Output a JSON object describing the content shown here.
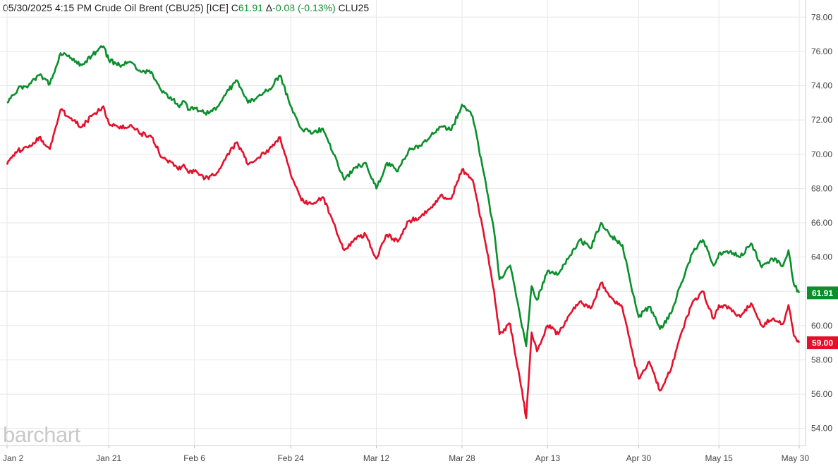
{
  "header": {
    "datetime": "05/30/2025 4:15 PM",
    "instrument": "Crude Oil Brent (CBU25) [ICE]",
    "close_label": "C",
    "close_value": "61.91",
    "change_label": "Δ",
    "change_value": "-0.08 (-0.13%)",
    "compare_symbol": "CLU25"
  },
  "watermark": "barchart",
  "colors": {
    "series_1": "#0a8f2c",
    "series_2": "#e4102b",
    "grid": "#e6e6e6",
    "axis_text": "#444444"
  },
  "chart_data": {
    "type": "line",
    "x_tick_labels": [
      "Jan 2",
      "Jan 21",
      "Feb 6",
      "Feb 24",
      "Mar 12",
      "Mar 28",
      "Apr 13",
      "Apr 30",
      "May 15",
      "May 30"
    ],
    "y_tick_labels": [
      "54.00",
      "56.00",
      "58.00",
      "60.00",
      "62.00",
      "64.00",
      "66.00",
      "68.00",
      "70.00",
      "72.00",
      "74.00",
      "76.00",
      "78.00"
    ],
    "ylim": [
      53,
      79
    ],
    "grid": true,
    "x_axis_position": "bottom",
    "y_axis_position": "right",
    "series": [
      {
        "name": "CBU25",
        "last_value": "61.91",
        "color": "#0a8f2c",
        "points": [
          [
            "Jan 2",
            73.0
          ],
          [
            "Jan 4",
            73.8
          ],
          [
            "Jan 6",
            74.0
          ],
          [
            "Jan 8",
            74.6
          ],
          [
            "Jan 10",
            74.1
          ],
          [
            "Jan 12",
            75.9
          ],
          [
            "Jan 14",
            75.6
          ],
          [
            "Jan 16",
            75.2
          ],
          [
            "Jan 18",
            75.8
          ],
          [
            "Jan 20",
            76.3
          ],
          [
            "Jan 21",
            75.5
          ],
          [
            "Jan 23",
            75.2
          ],
          [
            "Jan 25",
            75.4
          ],
          [
            "Jan 27",
            74.8
          ],
          [
            "Jan 29",
            74.8
          ],
          [
            "Jan 31",
            73.6
          ],
          [
            "Feb 2",
            73.2
          ],
          [
            "Feb 3",
            72.8
          ],
          [
            "Feb 4",
            73.1
          ],
          [
            "Feb 5",
            72.6
          ],
          [
            "Feb 6",
            72.7
          ],
          [
            "Feb 8",
            72.4
          ],
          [
            "Feb 10",
            72.6
          ],
          [
            "Feb 12",
            73.6
          ],
          [
            "Feb 14",
            74.3
          ],
          [
            "Feb 16",
            73.0
          ],
          [
            "Feb 18",
            73.4
          ],
          [
            "Feb 20",
            73.8
          ],
          [
            "Feb 22",
            74.6
          ],
          [
            "Feb 24",
            72.8
          ],
          [
            "Feb 26",
            71.5
          ],
          [
            "Feb 28",
            71.2
          ],
          [
            "Mar 2",
            71.5
          ],
          [
            "Mar 4",
            70.0
          ],
          [
            "Mar 6",
            68.5
          ],
          [
            "Mar 8",
            69.2
          ],
          [
            "Mar 10",
            69.5
          ],
          [
            "Mar 12",
            68.0
          ],
          [
            "Mar 14",
            69.5
          ],
          [
            "Mar 16",
            69.0
          ],
          [
            "Mar 18",
            70.2
          ],
          [
            "Mar 20",
            70.5
          ],
          [
            "Mar 22",
            71.0
          ],
          [
            "Mar 24",
            71.6
          ],
          [
            "Mar 26",
            71.4
          ],
          [
            "Mar 28",
            72.9
          ],
          [
            "Mar 30",
            72.2
          ],
          [
            "Apr 1",
            69.0
          ],
          [
            "Apr 3",
            65.5
          ],
          [
            "Apr 4",
            62.7
          ],
          [
            "Apr 6",
            63.5
          ],
          [
            "Apr 8",
            60.3
          ],
          [
            "Apr 9",
            58.8
          ],
          [
            "Apr 10",
            62.3
          ],
          [
            "Apr 11",
            61.5
          ],
          [
            "Apr 13",
            63.2
          ],
          [
            "Apr 15",
            63.0
          ],
          [
            "Apr 17",
            64.0
          ],
          [
            "Apr 19",
            65.0
          ],
          [
            "Apr 21",
            64.5
          ],
          [
            "Apr 23",
            66.0
          ],
          [
            "Apr 25",
            65.2
          ],
          [
            "Apr 27",
            64.7
          ],
          [
            "Apr 29",
            61.8
          ],
          [
            "Apr 30",
            60.5
          ],
          [
            "May 2",
            61.1
          ],
          [
            "May 4",
            59.8
          ],
          [
            "May 6",
            60.7
          ],
          [
            "May 8",
            62.5
          ],
          [
            "May 10",
            64.2
          ],
          [
            "May 12",
            65.0
          ],
          [
            "May 14",
            63.5
          ],
          [
            "May 15",
            64.2
          ],
          [
            "May 17",
            64.3
          ],
          [
            "May 19",
            64.0
          ],
          [
            "May 21",
            64.8
          ],
          [
            "May 23",
            63.4
          ],
          [
            "May 25",
            63.9
          ],
          [
            "May 27",
            63.5
          ],
          [
            "May 28",
            64.4
          ],
          [
            "May 29",
            62.4
          ],
          [
            "May 30",
            61.91
          ]
        ]
      },
      {
        "name": "CLU25",
        "last_value": "59.00",
        "color": "#e4102b",
        "points": [
          [
            "Jan 2",
            69.4
          ],
          [
            "Jan 4",
            70.2
          ],
          [
            "Jan 6",
            70.4
          ],
          [
            "Jan 8",
            71.0
          ],
          [
            "Jan 10",
            70.3
          ],
          [
            "Jan 12",
            72.6
          ],
          [
            "Jan 14",
            72.1
          ],
          [
            "Jan 16",
            71.6
          ],
          [
            "Jan 18",
            72.3
          ],
          [
            "Jan 20",
            72.8
          ],
          [
            "Jan 21",
            71.8
          ],
          [
            "Jan 23",
            71.5
          ],
          [
            "Jan 25",
            71.7
          ],
          [
            "Jan 27",
            71.2
          ],
          [
            "Jan 29",
            71.0
          ],
          [
            "Jan 31",
            69.8
          ],
          [
            "Feb 2",
            69.5
          ],
          [
            "Feb 3",
            69.1
          ],
          [
            "Feb 4",
            69.4
          ],
          [
            "Feb 5",
            68.9
          ],
          [
            "Feb 6",
            69.0
          ],
          [
            "Feb 8",
            68.6
          ],
          [
            "Feb 10",
            68.8
          ],
          [
            "Feb 12",
            69.9
          ],
          [
            "Feb 14",
            70.7
          ],
          [
            "Feb 16",
            69.4
          ],
          [
            "Feb 18",
            69.8
          ],
          [
            "Feb 20",
            70.3
          ],
          [
            "Feb 22",
            71.0
          ],
          [
            "Feb 24",
            68.8
          ],
          [
            "Feb 26",
            67.3
          ],
          [
            "Feb 28",
            67.1
          ],
          [
            "Mar 2",
            67.5
          ],
          [
            "Mar 4",
            66.0
          ],
          [
            "Mar 6",
            64.4
          ],
          [
            "Mar 8",
            65.1
          ],
          [
            "Mar 10",
            65.3
          ],
          [
            "Mar 12",
            63.9
          ],
          [
            "Mar 14",
            65.3
          ],
          [
            "Mar 16",
            64.9
          ],
          [
            "Mar 18",
            66.1
          ],
          [
            "Mar 20",
            66.3
          ],
          [
            "Mar 22",
            66.8
          ],
          [
            "Mar 24",
            67.6
          ],
          [
            "Mar 26",
            67.4
          ],
          [
            "Mar 28",
            69.1
          ],
          [
            "Mar 30",
            68.5
          ],
          [
            "Apr 1",
            65.5
          ],
          [
            "Apr 3",
            62.0
          ],
          [
            "Apr 4",
            59.5
          ],
          [
            "Apr 6",
            60.1
          ],
          [
            "Apr 8",
            56.5
          ],
          [
            "Apr 9",
            54.6
          ],
          [
            "Apr 10",
            59.6
          ],
          [
            "Apr 11",
            58.5
          ],
          [
            "Apr 13",
            60.0
          ],
          [
            "Apr 15",
            59.5
          ],
          [
            "Apr 17",
            60.6
          ],
          [
            "Apr 19",
            61.4
          ],
          [
            "Apr 21",
            61.0
          ],
          [
            "Apr 23",
            62.5
          ],
          [
            "Apr 25",
            61.6
          ],
          [
            "Apr 27",
            61.0
          ],
          [
            "Apr 29",
            58.2
          ],
          [
            "Apr 30",
            56.9
          ],
          [
            "May 2",
            57.9
          ],
          [
            "May 4",
            56.2
          ],
          [
            "May 6",
            57.4
          ],
          [
            "May 8",
            59.6
          ],
          [
            "May 10",
            61.3
          ],
          [
            "May 12",
            62.0
          ],
          [
            "May 14",
            60.4
          ],
          [
            "May 15",
            61.2
          ],
          [
            "May 17",
            61.0
          ],
          [
            "May 19",
            60.5
          ],
          [
            "May 21",
            61.3
          ],
          [
            "May 23",
            60.0
          ],
          [
            "May 25",
            60.4
          ],
          [
            "May 27",
            60.1
          ],
          [
            "May 28",
            61.2
          ],
          [
            "May 29",
            59.4
          ],
          [
            "May 30",
            59.0
          ]
        ]
      }
    ]
  }
}
